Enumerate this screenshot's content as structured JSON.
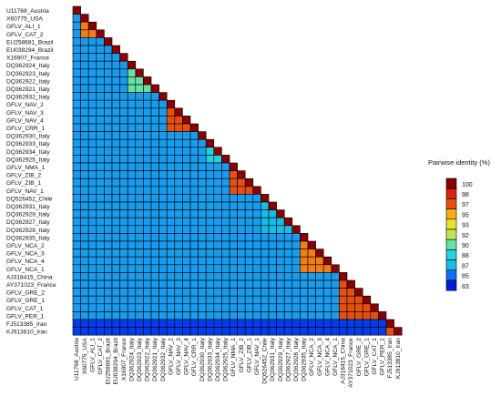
{
  "chart_data": {
    "type": "heatmap",
    "layout": "lower-triangle",
    "labels": [
      "U11768_Austria",
      "X60775_USA",
      "GFLV_ALI_1",
      "GFLV_CAT_2",
      "EU258681_Brazil",
      "EU038294_Brazil",
      "X16907_France",
      "DQ362924_Italy",
      "DQ362923_Italy",
      "DQ362922_Italy",
      "DQ362921_Italy",
      "DQ362932_Italy",
      "GFLV_NAV_2",
      "GFLV_NAV_3",
      "GFLV_NAV_4",
      "GFLV_CRR_1",
      "DQ362930_Italy",
      "DQ362933_Italy",
      "DQ362934_Italy",
      "DQ362925_Italy",
      "GFLV_NMA_1",
      "GFLV_ZIB_2",
      "GFLV_ZIB_1",
      "GFLV_NAV_1",
      "DQ526452_Chile",
      "DQ362931_Italy",
      "DQ362929_Italy",
      "DQ362927_Italy",
      "DQ362928_Italy",
      "DQ362935_Italy",
      "GFLV_NCA_2",
      "GFLV_NCA_3",
      "GFLV_NCA_4",
      "GFLV_NCA_1",
      "AJ318415_China",
      "AY371023_France",
      "GFLV_GRE_2",
      "GFLV_GRE_1",
      "GFLV_CAT_1",
      "GFLV_PER_1",
      "FJ513385_Iran",
      "KJ913810_Iran"
    ],
    "clusters": [
      {
        "range": [
          1,
          3
        ],
        "within": 96
      },
      {
        "range": [
          7,
          10
        ],
        "within": 90
      },
      {
        "range": [
          12,
          15
        ],
        "within": 97
      },
      {
        "range": [
          17,
          19
        ],
        "within": 88
      },
      {
        "range": [
          20,
          23
        ],
        "within": 97
      },
      {
        "range": [
          24,
          28
        ],
        "within": 87
      },
      {
        "range": [
          29,
          33
        ],
        "within": 96
      },
      {
        "range": [
          34,
          39
        ],
        "within": 97
      },
      {
        "range": [
          40,
          41
        ],
        "within": 97
      }
    ],
    "between_cluster_default": 86,
    "distinct_group_rows": [
      40,
      41
    ],
    "distinct_group_vs_others": 84,
    "legend": {
      "title": "Pairwise identity (%)",
      "ticks": [
        100,
        98,
        97,
        95,
        93,
        92,
        90,
        88,
        87,
        85,
        83
      ],
      "range": [
        82,
        100
      ]
    },
    "colors": {
      "scale": [
        "#0a00b8",
        "#0033ee",
        "#1a8ef0",
        "#14cbe6",
        "#3de0c8",
        "#9ae07a",
        "#e4e832",
        "#f8c018",
        "#f06a10",
        "#d01c10",
        "#8a0000"
      ],
      "cell_border": "#000000"
    },
    "grid": false
  }
}
